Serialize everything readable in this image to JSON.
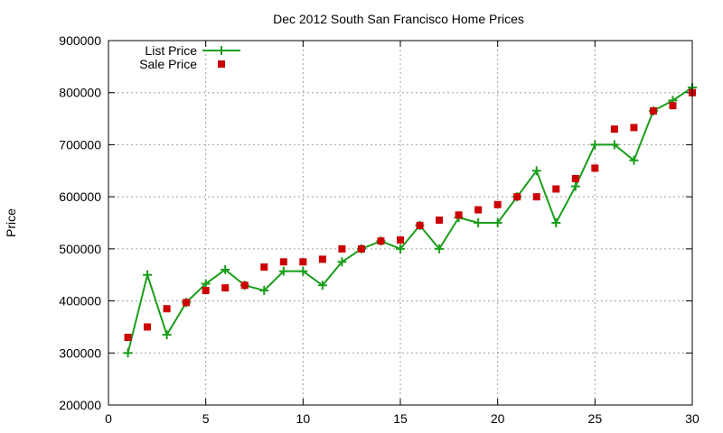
{
  "chart_data": {
    "type": "line",
    "title": "Dec 2012 South San Francisco Home Prices",
    "xlabel": "",
    "ylabel": "Price",
    "xlim": [
      0,
      30
    ],
    "ylim": [
      200000,
      900000
    ],
    "x_ticks": [
      0,
      5,
      10,
      15,
      20,
      25,
      30
    ],
    "y_ticks": [
      200000,
      300000,
      400000,
      500000,
      600000,
      700000,
      800000,
      900000
    ],
    "x_tick_labels": [
      "0",
      "5",
      "10",
      "15",
      "20",
      "25",
      "30"
    ],
    "y_tick_labels": [
      "200000",
      "300000",
      "400000",
      "500000",
      "600000",
      "700000",
      "800000",
      "900000"
    ],
    "grid": true,
    "legend_position": "top-left",
    "x": [
      1,
      2,
      3,
      4,
      5,
      6,
      7,
      8,
      9,
      10,
      11,
      12,
      13,
      14,
      15,
      16,
      17,
      18,
      19,
      20,
      21,
      22,
      23,
      24,
      25,
      26,
      27,
      28,
      29,
      30
    ],
    "series": [
      {
        "name": "List Price",
        "style": "line-plus",
        "color": "#1a9e1a",
        "values": [
          300000,
          450000,
          335000,
          397000,
          433000,
          460000,
          430000,
          420000,
          457000,
          457000,
          430000,
          475000,
          500000,
          515000,
          500000,
          545000,
          500000,
          560000,
          550000,
          550000,
          600000,
          650000,
          550000,
          620000,
          700000,
          700000,
          670000,
          765000,
          785000,
          810000
        ]
      },
      {
        "name": "Sale Price",
        "style": "square-marker",
        "color": "#cc0000",
        "values": [
          330000,
          350000,
          385000,
          397000,
          420000,
          425000,
          430000,
          465000,
          475000,
          475000,
          480000,
          500000,
          500000,
          515000,
          517000,
          545000,
          555000,
          565000,
          575000,
          585000,
          600000,
          600000,
          615000,
          635000,
          655000,
          730000,
          733000,
          765000,
          775000,
          800000
        ]
      }
    ]
  }
}
